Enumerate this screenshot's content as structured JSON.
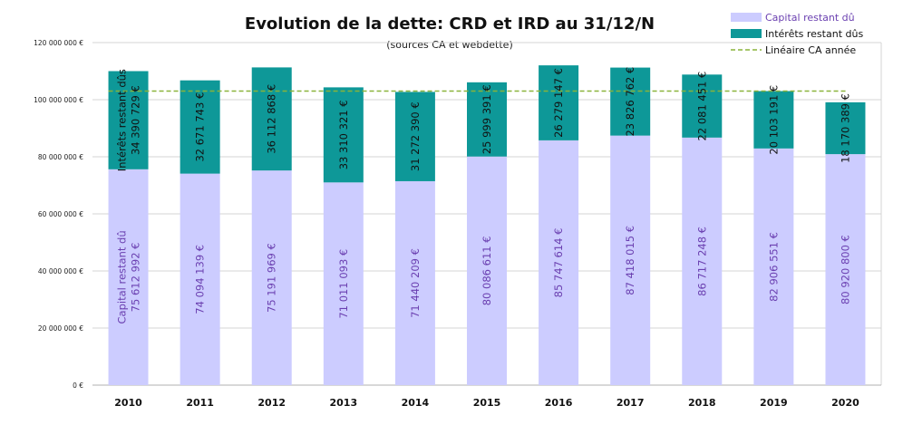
{
  "chart_data": {
    "type": "bar",
    "stacked": true,
    "title": "Evolution de la dette: CRD et IRD au 31/12/N",
    "subtitle": "(sources CA et webdette)",
    "categories": [
      "2010",
      "2011",
      "2012",
      "2013",
      "2014",
      "2015",
      "2016",
      "2017",
      "2018",
      "2019",
      "2020"
    ],
    "series": [
      {
        "name": "Capital restant dû",
        "color": "#ccccff",
        "label_color": "#6a3fb0",
        "values": [
          75612992,
          74094139,
          75191969,
          71011093,
          71440209,
          80086611,
          85747614,
          87418015,
          86717248,
          82906551,
          80920800
        ],
        "labels": [
          "75 612 992 €",
          "74 094 139 €",
          "75 191 969 €",
          "71 011 093 €",
          "71 440 209 €",
          "80 086 611 €",
          "85 747 614 €",
          "87 418 015 €",
          "86 717 248 €",
          "82 906 551 €",
          "80 920 800 €"
        ],
        "first_label_prefix": "Capital restant dû"
      },
      {
        "name": "Intérêts restant dûs",
        "color": "#0e9898",
        "label_color": "#111111",
        "values": [
          34390729,
          32671743,
          36112868,
          33310321,
          31272390,
          25999391,
          26279147,
          23826762,
          22081451,
          20103191,
          18170389
        ],
        "labels": [
          "34 390 729 €",
          "32 671 743 €",
          "36 112 868 €",
          "33 310 321 €",
          "31 272 390 €",
          "25 999 391 €",
          "26 279 147 €",
          "23 826 762 €",
          "22 081 451 €",
          "20 103 191 €",
          "18 170 389 €"
        ],
        "first_label_prefix": "Intérêts restant dûs"
      }
    ],
    "reference_line": {
      "name": "Linéaire CA année",
      "value": 103000000,
      "color": "#8ab33a",
      "style": "dashed"
    },
    "ylim": [
      0,
      120000000
    ],
    "yticks": [
      0,
      20000000,
      40000000,
      60000000,
      80000000,
      100000000,
      120000000
    ],
    "ytick_labels": [
      "0 €",
      "20 000 000 €",
      "40 000 000 €",
      "60 000 000 €",
      "80 000 000 €",
      "100 000 000 €",
      "120 000 000 €"
    ],
    "xlabel": "",
    "ylabel": "",
    "grid": true,
    "legend": {
      "position": "top-right",
      "entries": [
        "Capital restant dû",
        "Intérêts restant dûs",
        "Linéaire CA année"
      ]
    }
  }
}
